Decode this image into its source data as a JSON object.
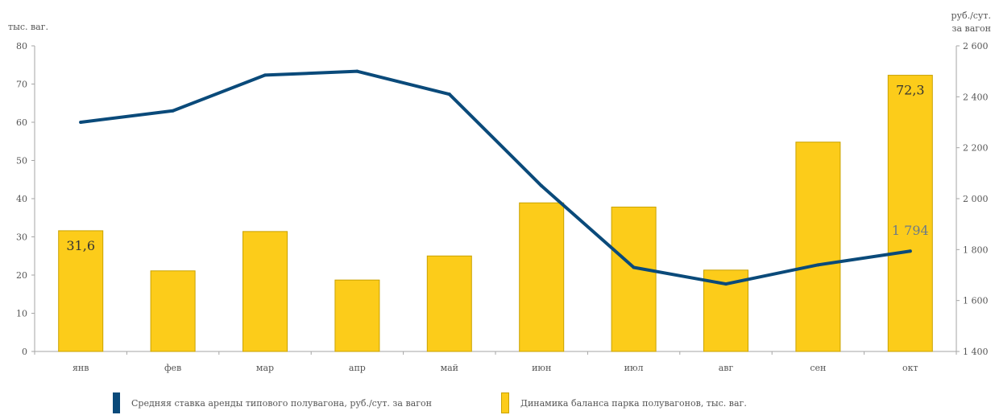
{
  "chart_data": {
    "type": "bar",
    "categories": [
      "янв",
      "фев",
      "мар",
      "апр",
      "май",
      "июн",
      "июл",
      "авг",
      "сен",
      "окт"
    ],
    "series": [
      {
        "name": "Динамика баланса парка полувагонов, тыс. ваг.",
        "kind": "bar",
        "axis": "left",
        "color": "#FCCC1A",
        "values": [
          31.6,
          21.1,
          31.4,
          18.7,
          25.0,
          38.9,
          37.8,
          21.3,
          54.8,
          72.3
        ]
      },
      {
        "name": "Средняя ставка аренды типового полувагона, руб./сут. за вагон",
        "kind": "line",
        "axis": "right",
        "color": "#0A4A7A",
        "values": [
          2300,
          2345,
          2485,
          2500,
          2410,
          2050,
          1730,
          1665,
          1740,
          1794
        ]
      }
    ],
    "y_left": {
      "label": "тыс. ваг.",
      "ylim": [
        0,
        80
      ],
      "ticks": [
        "0",
        "10",
        "20",
        "30",
        "40",
        "50",
        "60",
        "70",
        "80"
      ]
    },
    "y_right": {
      "label_line1": "руб./сут.",
      "label_line2": "за вагон",
      "ylim": [
        1400,
        2600
      ],
      "ticks": [
        "1 400",
        "1 600",
        "1 800",
        "2 000",
        "2 200",
        "2 400",
        "2 600"
      ]
    },
    "data_labels": [
      {
        "text": "31,6",
        "series": 0,
        "index": 0,
        "color": "#333333"
      },
      {
        "text": "72,3",
        "series": 0,
        "index": 9,
        "color": "#333333"
      },
      {
        "text": "1 794",
        "series": 1,
        "index": 9,
        "color": "#6B7A88"
      }
    ],
    "grid": false,
    "legend_position": "bottom"
  }
}
